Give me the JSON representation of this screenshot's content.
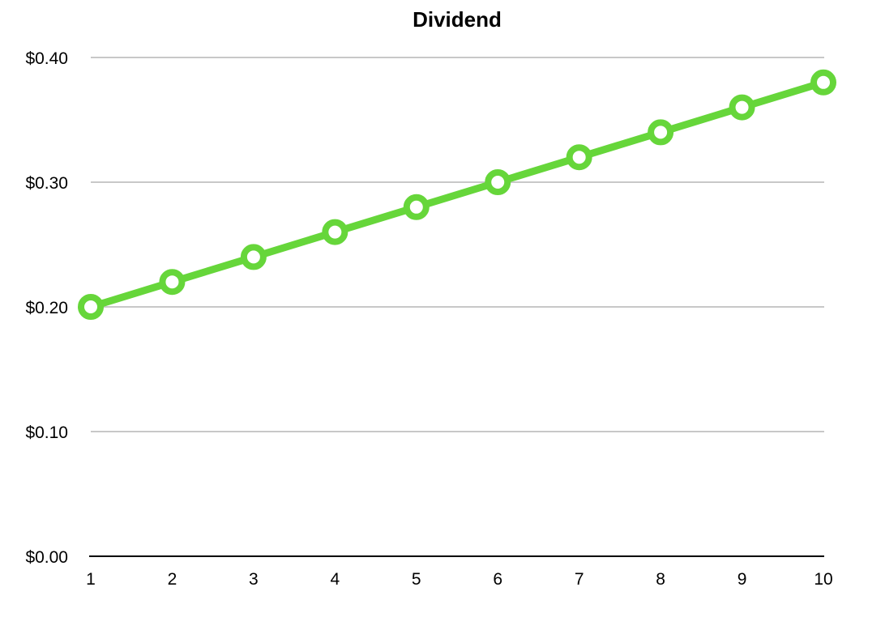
{
  "chart_data": {
    "type": "line",
    "title": "Dividend",
    "xlabel": "",
    "ylabel": "",
    "categories": [
      "1",
      "2",
      "3",
      "4",
      "5",
      "6",
      "7",
      "8",
      "9",
      "10"
    ],
    "series": [
      {
        "values": [
          0.2,
          0.22,
          0.24,
          0.26,
          0.28,
          0.3,
          0.32,
          0.34,
          0.36,
          0.38
        ],
        "color": "#66d63a"
      }
    ],
    "ylim": [
      0,
      0.4
    ],
    "yticks": [
      0.0,
      0.1,
      0.2,
      0.3,
      0.4
    ],
    "ytick_labels": [
      "$0.00",
      "$0.10",
      "$0.20",
      "$0.30",
      "$0.40"
    ],
    "grid": true,
    "legend": "none",
    "colors": {
      "grid": "#c8c8c8",
      "axis": "#000000",
      "marker_fill": "#ffffff"
    }
  }
}
